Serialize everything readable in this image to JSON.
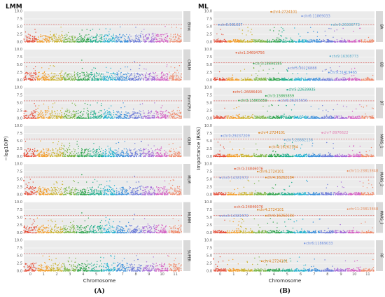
{
  "figure": {
    "left_title": "LMM",
    "right_title": "ML",
    "left_caption": "(A)",
    "right_caption": "(B)"
  },
  "chart_data": [
    {
      "type": "scatter",
      "title": "LMM",
      "subtype": "manhattan-facets",
      "xlabel": "Chromosome",
      "ylabel": "−log10(P)",
      "x_ticks": [
        "0",
        "1",
        "2",
        "3",
        "4",
        "5",
        "6",
        "7",
        "8",
        "9",
        "10",
        "11"
      ],
      "y_ticks": [
        0,
        2.5,
        5.0,
        7.5,
        10.0
      ],
      "ylim": [
        0,
        10
      ],
      "threshold": 5.7,
      "facets": [
        "Blink",
        "CMLM",
        "FarmCPU",
        "GLM",
        "MLM",
        "MLMM",
        "SUPER"
      ],
      "chromosome_colors": [
        "#e64b35",
        "#f39b26",
        "#c9b12a",
        "#7bb545",
        "#2ca34a",
        "#1fad8c",
        "#22b1cf",
        "#3b8fdb",
        "#6b7bd8",
        "#a56bd8",
        "#d45fc3",
        "#f08a6b"
      ]
    },
    {
      "type": "scatter",
      "title": "ML",
      "subtype": "importance-facets",
      "xlabel": "Chromosome",
      "ylabel": "Importance (RSS)",
      "x_ticks": [
        "0",
        "1",
        "2",
        "3",
        "4",
        "5",
        "6",
        "7",
        "8",
        "9",
        "10",
        "11"
      ],
      "y_ticks": [
        0,
        2.5,
        5.0,
        7.5,
        10.0
      ],
      "ylim": [
        0,
        10
      ],
      "threshold": 5.7,
      "facets": [
        {
          "name": "BA",
          "labels": [
            {
              "text": "chr4:2724101",
              "chr": 4,
              "y": 9.8,
              "color": "#d97a14"
            },
            {
              "text": "chr6:11869033",
              "chr": 6.3,
              "y": 8.4,
              "color": "#6c8de0"
            },
            {
              "text": "chr0:581037",
              "chr": 0.1,
              "y": 5.6,
              "color": "#4a7fd0"
            },
            {
              "text": "chr9:26300773",
              "chr": 8.5,
              "y": 5.6,
              "color": "#55a8c8"
            }
          ]
        },
        {
          "name": "BD",
          "labels": [
            {
              "text": "chr1:34694756",
              "chr": 1.4,
              "y": 8.9,
              "color": "#e0552f"
            },
            {
              "text": "chr9:16308773",
              "chr": 8.4,
              "y": 7.8,
              "color": "#55a8c8"
            },
            {
              "text": "chr3:18694385",
              "chr": 2.7,
              "y": 5.4,
              "color": "#2f9e4a"
            },
            {
              "text": "chr5:30276888",
              "chr": 5.3,
              "y": 3.9,
              "color": "#6f86d8"
            },
            {
              "text": "chr9:31419465",
              "chr": 8.3,
              "y": 2.5,
              "color": "#5a8fe0"
            }
          ]
        },
        {
          "name": "DT",
          "labels": [
            {
              "text": "chr1:26686493",
              "chr": 1.2,
              "y": 8.6,
              "color": "#e0552f"
            },
            {
              "text": "chr5:22639935",
              "chr": 5.2,
              "y": 9.3,
              "color": "#1fa98c"
            },
            {
              "text": "chr3:15865859",
              "chr": 3.6,
              "y": 7.3,
              "color": "#2ca34a"
            },
            {
              "text": "chr3:15865859",
              "chr": 1.6,
              "y": 5.8,
              "color": "#2ca34a"
            },
            {
              "text": "chr6:36205656",
              "chr": 4.6,
              "y": 5.8,
              "color": "#6c8de0"
            }
          ]
        },
        {
          "name": "MARS_1",
          "labels": [
            {
              "text": "chr0:29237209",
              "chr": 0.3,
              "y": 6.7,
              "color": "#6c8de0"
            },
            {
              "text": "chr4:2724101",
              "chr": 3.1,
              "y": 7.7,
              "color": "#d97a14"
            },
            {
              "text": "chr7:8976622",
              "chr": 7.8,
              "y": 7.7,
              "color": "#e07fb0"
            },
            {
              "text": "chr5:28882136",
              "chr": 5.0,
              "y": 5.4,
              "color": "#5aa5d8"
            },
            {
              "text": "chr4:16262184",
              "chr": 3.9,
              "y": 3.1,
              "color": "#d97a14"
            }
          ]
        },
        {
          "name": "MARS_2",
          "labels": [
            {
              "text": "chr1:24846076",
              "chr": 1.3,
              "y": 8.4,
              "color": "#e0552f"
            },
            {
              "text": "chr4:2724101",
              "chr": 3.0,
              "y": 7.5,
              "color": "#d97a14"
            },
            {
              "text": "chr0:14381572",
              "chr": 0.2,
              "y": 5.5,
              "color": "#6c8de0"
            },
            {
              "text": "chr4:16262184",
              "chr": 3.6,
              "y": 5.6,
              "color": "#d97a14"
            },
            {
              "text": "chr11:23813848",
              "chr": 9.7,
              "y": 7.7,
              "color": "#e48b5c"
            }
          ]
        },
        {
          "name": "MARS_3",
          "labels": [
            {
              "text": "chr1:24846076",
              "chr": 1.3,
              "y": 8.4,
              "color": "#e0552f"
            },
            {
              "text": "chr4:2724101",
              "chr": 3.0,
              "y": 7.5,
              "color": "#d97a14"
            },
            {
              "text": "chr0:14381572",
              "chr": 0.2,
              "y": 5.5,
              "color": "#6c8de0"
            },
            {
              "text": "chr4:16262184",
              "chr": 3.6,
              "y": 5.6,
              "color": "#d97a14"
            },
            {
              "text": "chr11:23813848",
              "chr": 9.7,
              "y": 7.7,
              "color": "#e48b5c"
            }
          ]
        },
        {
          "name": "RF",
          "labels": [
            {
              "text": "chr6:11869033",
              "chr": 6.5,
              "y": 9.0,
              "color": "#6c8de0"
            },
            {
              "text": "chr4:2724101",
              "chr": 3.3,
              "y": 3.2,
              "color": "#d97a14"
            }
          ]
        }
      ]
    }
  ]
}
